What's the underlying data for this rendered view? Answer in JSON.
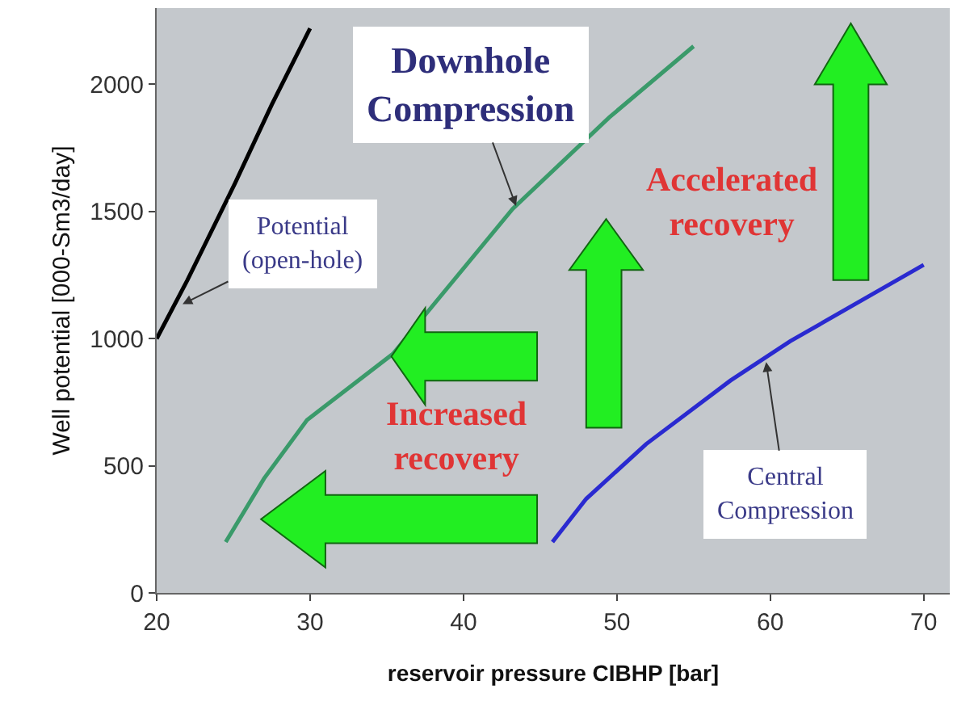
{
  "chart_data": {
    "type": "line",
    "xlabel": "reservoir pressure CIBHP [bar]",
    "ylabel": "Well potential [000-Sm3/day]",
    "xlim": [
      20,
      71.7
    ],
    "xticks": [
      20,
      30,
      40,
      50,
      60,
      70
    ],
    "ylim": [
      0,
      2300
    ],
    "yticks": [
      0,
      500,
      1000,
      1500,
      2000
    ],
    "series": [
      {
        "color": "#000000",
        "x": [
          20,
          22,
          25.1,
          27.5,
          30
        ],
        "values": [
          1000,
          1230,
          1610,
          1920,
          2220
        ]
      },
      {
        "color": "#3a9a6a",
        "x": [
          24.5,
          27,
          29.8,
          35.4,
          43.2,
          49.5,
          55
        ],
        "values": [
          200,
          450,
          680,
          940,
          1510,
          1870,
          2150
        ]
      },
      {
        "color": "#2a2ad0",
        "x": [
          45.8,
          48,
          51.9,
          57.4,
          61.3,
          70
        ],
        "values": [
          200,
          370,
          585,
          835,
          990,
          1290
        ]
      }
    ],
    "annotations": [
      {
        "text": "Downhole Compression",
        "x": 43.5,
        "y": 1510
      },
      {
        "text": "Potential (open-hole)",
        "x": 21.5,
        "y": 1130
      },
      {
        "text": "Central Compression",
        "x": 59.7,
        "y": 920
      },
      "Accelerated recovery",
      "Increased recovery"
    ]
  }
}
